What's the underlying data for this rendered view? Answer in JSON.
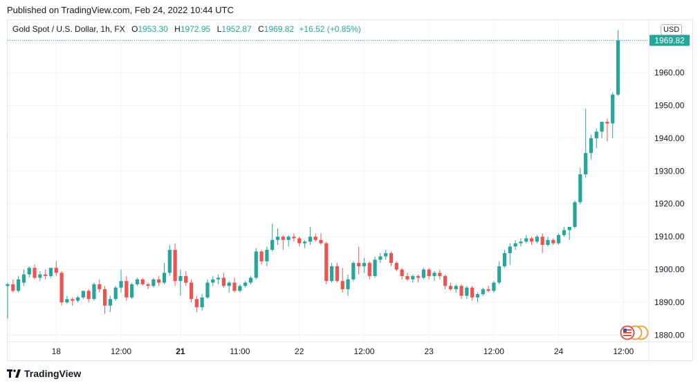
{
  "published": "Published on TradingView.com, Feb 24, 2022 10:44 UTC",
  "legend": {
    "symbol": "Gold Spot / U.S. Dollar, 1h, FX",
    "o_label": "O",
    "o_value": "1953.30",
    "h_label": "H",
    "h_value": "1972.95",
    "l_label": "L",
    "l_value": "1952.87",
    "c_label": "C",
    "c_value": "1969.82",
    "change": "+16.52 (+0.85%)"
  },
  "currency_button": "USD",
  "footer": {
    "brand": "TradingView",
    "logo_icon": "tradingview-logo-icon"
  },
  "colors": {
    "up": "#26a69a",
    "down": "#ef5350",
    "grid": "#f0f3fa",
    "last_price": "#26a69a"
  },
  "chart_data": {
    "type": "candlestick",
    "title": "Gold Spot / U.S. Dollar, 1h, FX",
    "ylim": [
      1878,
      1976
    ],
    "y_ticks": [
      "1880.00",
      "1890.00",
      "1900.00",
      "1910.00",
      "1920.00",
      "1930.00",
      "1940.00",
      "1950.00",
      "1960.00"
    ],
    "x_ticks": [
      {
        "label": "18",
        "index": 9,
        "bold": false
      },
      {
        "label": "12:00",
        "index": 21,
        "bold": false
      },
      {
        "label": "21",
        "index": 32,
        "bold": true
      },
      {
        "label": "11:00",
        "index": 43,
        "bold": false
      },
      {
        "label": "22",
        "index": 54,
        "bold": false
      },
      {
        "label": "12:00",
        "index": 66,
        "bold": false
      },
      {
        "label": "23",
        "index": 78,
        "bold": false
      },
      {
        "label": "12:00",
        "index": 90,
        "bold": false
      },
      {
        "label": "24",
        "index": 102,
        "bold": false
      },
      {
        "label": "12:00",
        "index": 114,
        "bold": false
      }
    ],
    "last_price": "1969.82",
    "last_price_value": 1969.82,
    "candles": [
      [
        1895.0,
        1896.0,
        1885.0,
        1895.5
      ],
      [
        1895.5,
        1897.0,
        1893.0,
        1893.5
      ],
      [
        1893.5,
        1898.0,
        1893.0,
        1897.0
      ],
      [
        1896.0,
        1900.0,
        1895.0,
        1898.5
      ],
      [
        1898.5,
        1901.0,
        1897.5,
        1900.5
      ],
      [
        1900.5,
        1901.5,
        1897.0,
        1897.5
      ],
      [
        1897.5,
        1899.5,
        1896.5,
        1898.5
      ],
      [
        1898.5,
        1900.0,
        1897.0,
        1898.0
      ],
      [
        1898.0,
        1900.5,
        1897.5,
        1900.5
      ],
      [
        1900.5,
        1902.5,
        1898.0,
        1899.0
      ],
      [
        1899.0,
        1899.5,
        1889.0,
        1890.0
      ],
      [
        1890.0,
        1892.0,
        1889.5,
        1891.0
      ],
      [
        1891.0,
        1891.5,
        1889.0,
        1890.5
      ],
      [
        1890.5,
        1892.0,
        1890.0,
        1891.5
      ],
      [
        1891.5,
        1893.5,
        1891.0,
        1893.5
      ],
      [
        1893.5,
        1894.0,
        1890.0,
        1891.0
      ],
      [
        1891.0,
        1896.0,
        1890.5,
        1895.5
      ],
      [
        1895.5,
        1897.0,
        1893.0,
        1894.0
      ],
      [
        1894.0,
        1895.0,
        1886.5,
        1889.0
      ],
      [
        1889.0,
        1892.0,
        1887.0,
        1891.0
      ],
      [
        1891.0,
        1895.0,
        1890.5,
        1894.5
      ],
      [
        1894.5,
        1900.0,
        1893.0,
        1896.5
      ],
      [
        1896.5,
        1898.0,
        1890.5,
        1891.5
      ],
      [
        1891.5,
        1896.0,
        1891.0,
        1895.5
      ],
      [
        1895.5,
        1897.5,
        1895.0,
        1897.0
      ],
      [
        1897.0,
        1897.5,
        1895.0,
        1895.5
      ],
      [
        1895.5,
        1896.0,
        1894.0,
        1895.0
      ],
      [
        1895.0,
        1897.5,
        1894.5,
        1897.0
      ],
      [
        1897.0,
        1898.0,
        1895.0,
        1896.0
      ],
      [
        1896.0,
        1902.0,
        1895.5,
        1899.0
      ],
      [
        1899.0,
        1907.5,
        1898.0,
        1906.0
      ],
      [
        1906.0,
        1908.0,
        1895.0,
        1896.5
      ],
      [
        1896.5,
        1900.0,
        1892.0,
        1898.0
      ],
      [
        1898.0,
        1899.5,
        1895.0,
        1896.0
      ],
      [
        1896.0,
        1897.0,
        1890.0,
        1891.0
      ],
      [
        1891.0,
        1892.0,
        1887.0,
        1888.5
      ],
      [
        1888.5,
        1892.5,
        1887.5,
        1891.5
      ],
      [
        1891.5,
        1897.0,
        1891.0,
        1896.0
      ],
      [
        1896.0,
        1898.0,
        1895.0,
        1897.0
      ],
      [
        1897.0,
        1898.5,
        1895.5,
        1897.5
      ],
      [
        1897.5,
        1899.0,
        1894.5,
        1895.0
      ],
      [
        1895.0,
        1896.5,
        1893.0,
        1896.0
      ],
      [
        1896.0,
        1897.5,
        1893.0,
        1893.5
      ],
      [
        1893.5,
        1895.5,
        1893.0,
        1895.0
      ],
      [
        1895.0,
        1896.5,
        1894.5,
        1896.0
      ],
      [
        1896.0,
        1898.0,
        1895.5,
        1897.5
      ],
      [
        1897.5,
        1906.5,
        1897.0,
        1905.5
      ],
      [
        1905.5,
        1906.0,
        1901.5,
        1902.5
      ],
      [
        1902.5,
        1907.0,
        1901.0,
        1906.0
      ],
      [
        1906.0,
        1914.0,
        1905.5,
        1909.0
      ],
      [
        1909.0,
        1912.5,
        1907.5,
        1910.0
      ],
      [
        1910.0,
        1910.5,
        1906.0,
        1909.0
      ],
      [
        1909.0,
        1910.5,
        1907.0,
        1910.0
      ],
      [
        1910.0,
        1911.0,
        1908.5,
        1909.5
      ],
      [
        1909.5,
        1910.0,
        1907.0,
        1908.0
      ],
      [
        1908.0,
        1909.0,
        1906.5,
        1908.5
      ],
      [
        1908.5,
        1913.0,
        1907.5,
        1910.0
      ],
      [
        1910.0,
        1911.0,
        1908.5,
        1909.0
      ],
      [
        1909.0,
        1911.0,
        1907.5,
        1908.0
      ],
      [
        1908.0,
        1908.5,
        1895.5,
        1896.5
      ],
      [
        1896.5,
        1902.0,
        1896.0,
        1901.0
      ],
      [
        1901.0,
        1902.0,
        1896.0,
        1896.5
      ],
      [
        1896.5,
        1900.5,
        1893.0,
        1894.0
      ],
      [
        1894.0,
        1898.5,
        1892.0,
        1897.0
      ],
      [
        1897.0,
        1902.5,
        1896.5,
        1902.0
      ],
      [
        1902.0,
        1907.0,
        1898.5,
        1901.0
      ],
      [
        1901.0,
        1903.5,
        1899.0,
        1902.0
      ],
      [
        1902.0,
        1902.5,
        1897.0,
        1898.0
      ],
      [
        1898.0,
        1904.0,
        1897.5,
        1903.0
      ],
      [
        1903.0,
        1905.0,
        1902.0,
        1904.0
      ],
      [
        1904.0,
        1906.0,
        1903.0,
        1905.0
      ],
      [
        1905.0,
        1905.5,
        1901.0,
        1902.0
      ],
      [
        1902.0,
        1902.5,
        1899.5,
        1900.0
      ],
      [
        1900.0,
        1900.5,
        1897.0,
        1898.0
      ],
      [
        1898.0,
        1899.0,
        1896.5,
        1897.0
      ],
      [
        1897.0,
        1898.5,
        1896.0,
        1898.0
      ],
      [
        1898.0,
        1898.5,
        1896.0,
        1897.5
      ],
      [
        1897.5,
        1900.5,
        1897.0,
        1900.0
      ],
      [
        1900.0,
        1900.5,
        1897.0,
        1898.0
      ],
      [
        1898.0,
        1899.5,
        1896.5,
        1899.0
      ],
      [
        1899.0,
        1900.0,
        1897.0,
        1898.0
      ],
      [
        1898.0,
        1898.5,
        1894.0,
        1895.0
      ],
      [
        1895.0,
        1896.0,
        1893.5,
        1894.0
      ],
      [
        1894.0,
        1895.5,
        1893.0,
        1895.0
      ],
      [
        1895.0,
        1895.5,
        1891.0,
        1892.0
      ],
      [
        1892.0,
        1895.0,
        1891.0,
        1894.5
      ],
      [
        1894.5,
        1895.0,
        1890.5,
        1891.5
      ],
      [
        1891.5,
        1893.0,
        1890.0,
        1892.5
      ],
      [
        1892.5,
        1894.5,
        1892.0,
        1894.0
      ],
      [
        1894.0,
        1895.0,
        1893.0,
        1893.5
      ],
      [
        1893.5,
        1896.5,
        1893.0,
        1896.0
      ],
      [
        1896.0,
        1902.5,
        1895.5,
        1901.0
      ],
      [
        1901.0,
        1906.0,
        1900.5,
        1905.0
      ],
      [
        1905.0,
        1908.0,
        1901.5,
        1907.0
      ],
      [
        1907.0,
        1909.0,
        1906.0,
        1908.0
      ],
      [
        1908.0,
        1909.5,
        1907.0,
        1908.5
      ],
      [
        1908.5,
        1910.5,
        1908.0,
        1909.5
      ],
      [
        1909.5,
        1910.0,
        1907.5,
        1908.5
      ],
      [
        1908.5,
        1910.5,
        1908.0,
        1910.0
      ],
      [
        1910.0,
        1911.0,
        1905.0,
        1907.5
      ],
      [
        1907.5,
        1910.0,
        1907.0,
        1909.0
      ],
      [
        1909.0,
        1909.5,
        1907.5,
        1908.0
      ],
      [
        1908.0,
        1911.0,
        1907.5,
        1910.5
      ],
      [
        1910.5,
        1913.0,
        1910.0,
        1912.0
      ],
      [
        1912.0,
        1913.0,
        1909.0,
        1913.0
      ],
      [
        1913.0,
        1921.0,
        1912.5,
        1920.5
      ],
      [
        1920.5,
        1931.0,
        1920.0,
        1929.0
      ],
      [
        1929.0,
        1949.0,
        1928.0,
        1935.5
      ],
      [
        1935.5,
        1941.0,
        1933.5,
        1940.0
      ],
      [
        1940.0,
        1943.0,
        1937.0,
        1942.0
      ],
      [
        1942.0,
        1945.0,
        1940.0,
        1945.0
      ],
      [
        1945.0,
        1946.0,
        1939.0,
        1944.5
      ],
      [
        1944.5,
        1954.0,
        1940.0,
        1953.3
      ],
      [
        1953.3,
        1972.95,
        1952.87,
        1969.82
      ]
    ]
  }
}
